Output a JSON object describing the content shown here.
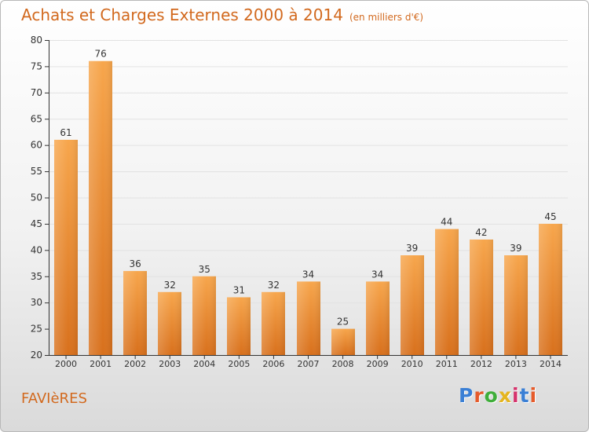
{
  "header": {
    "title": "Achats et Charges Externes 2000 à 2014",
    "unit": "(en milliers d'€)"
  },
  "footer": {
    "town": "FAVIèRES",
    "logo": "Proxiti",
    "logo_colors": [
      "#3a7fd5",
      "#e65b2b",
      "#3fae3a",
      "#e5b51f",
      "#d6336c",
      "#3a7fd5",
      "#e65b2b"
    ]
  },
  "colors": {
    "text_accent": "#d2691e",
    "bar_top": "#f7a64c",
    "bar_bottom": "#d8701c",
    "axis": "#333333",
    "grid": "#e2e2e2"
  },
  "chart_data": {
    "type": "bar",
    "title": "Achats et Charges Externes 2000 à 2014",
    "subtitle": "(en milliers d'€)",
    "categories": [
      "2000",
      "2001",
      "2002",
      "2003",
      "2004",
      "2005",
      "2006",
      "2007",
      "2008",
      "2009",
      "2010",
      "2011",
      "2012",
      "2013",
      "2014"
    ],
    "values": [
      61,
      76,
      36,
      32,
      35,
      31,
      32,
      34,
      25,
      34,
      39,
      44,
      42,
      39,
      45
    ],
    "ylim": [
      20,
      80
    ],
    "yticks": [
      20,
      25,
      30,
      35,
      40,
      45,
      50,
      55,
      60,
      65,
      70,
      75,
      80
    ],
    "xlabel": "",
    "ylabel": "",
    "grid": true,
    "legend": "none"
  }
}
